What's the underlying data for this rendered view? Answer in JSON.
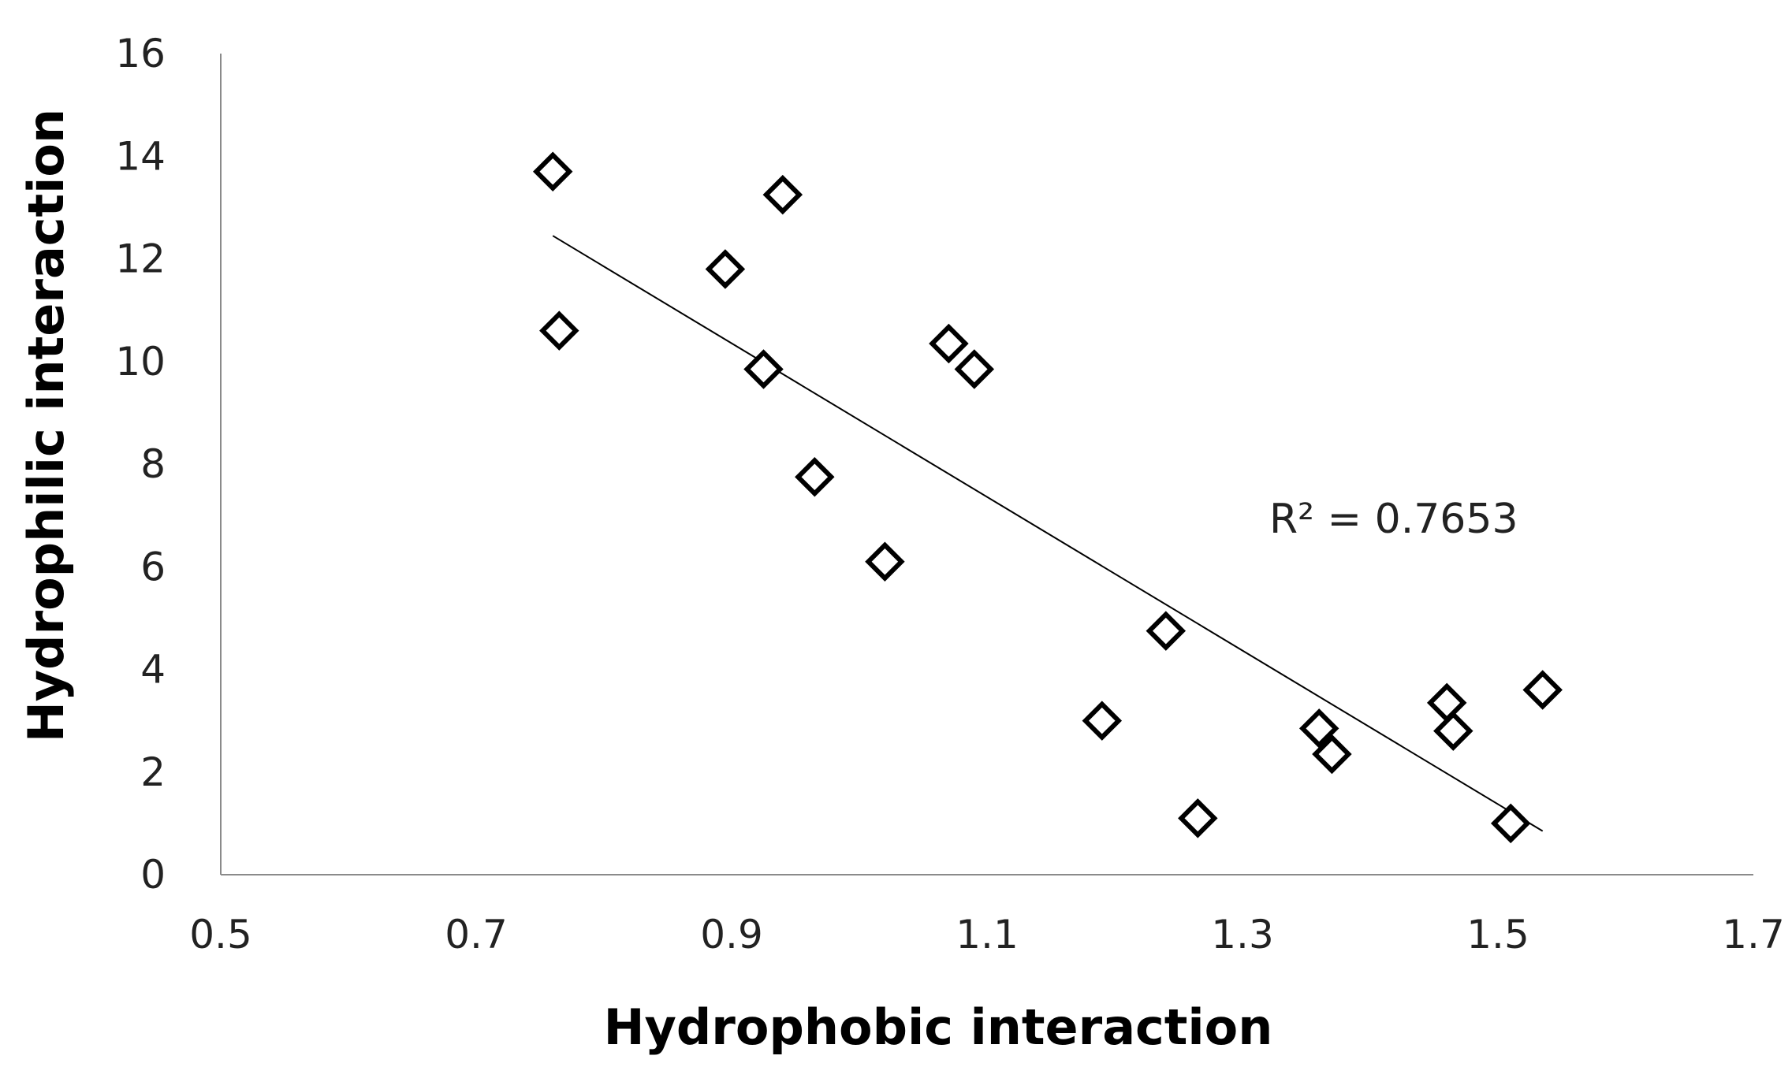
{
  "chart_data": {
    "type": "scatter",
    "xlabel": "Hydrophobic interaction",
    "ylabel": "Hydrophilic interaction",
    "xlim": [
      0.5,
      1.7
    ],
    "ylim": [
      0,
      16
    ],
    "x_ticks": [
      "0.5",
      "0.7",
      "0.9",
      "1.1",
      "1.3",
      "1.5",
      "1.7"
    ],
    "y_ticks": [
      "0",
      "2",
      "4",
      "6",
      "8",
      "10",
      "12",
      "14",
      "16"
    ],
    "grid": false,
    "legend": "none",
    "series": [
      {
        "marker": "open-diamond",
        "color": "#000000",
        "points": [
          {
            "x": 0.76,
            "y": 13.7
          },
          {
            "x": 0.765,
            "y": 10.6
          },
          {
            "x": 0.895,
            "y": 11.8
          },
          {
            "x": 0.925,
            "y": 9.85
          },
          {
            "x": 0.94,
            "y": 13.25
          },
          {
            "x": 0.965,
            "y": 7.75
          },
          {
            "x": 1.02,
            "y": 6.1
          },
          {
            "x": 1.07,
            "y": 10.35
          },
          {
            "x": 1.09,
            "y": 9.85
          },
          {
            "x": 1.19,
            "y": 3.0
          },
          {
            "x": 1.24,
            "y": 4.75
          },
          {
            "x": 1.265,
            "y": 1.1
          },
          {
            "x": 1.36,
            "y": 2.85
          },
          {
            "x": 1.37,
            "y": 2.35
          },
          {
            "x": 1.46,
            "y": 3.35
          },
          {
            "x": 1.465,
            "y": 2.8
          },
          {
            "x": 1.51,
            "y": 1.0
          },
          {
            "x": 1.535,
            "y": 3.6
          }
        ]
      }
    ],
    "trendline": {
      "type": "linear",
      "x": [
        0.76,
        1.535
      ],
      "y": [
        12.45,
        0.85
      ]
    },
    "annotation": "R² = 0.7653"
  }
}
